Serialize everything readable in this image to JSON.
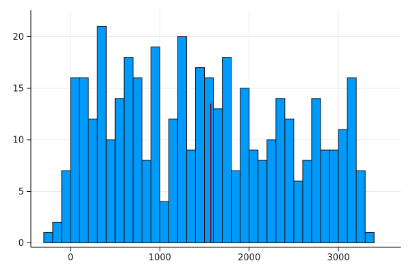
{
  "figure": {
    "background": "#ffffff",
    "title": ""
  },
  "chart_data": {
    "type": "bar",
    "subtype": "histogram",
    "title": "",
    "xlabel": "",
    "ylabel": "",
    "legend": "none",
    "grid": true,
    "bin_start": -300,
    "bin_width": 100,
    "counts": [
      1,
      2,
      7,
      16,
      16,
      12,
      21,
      10,
      14,
      18,
      16,
      8,
      19,
      4,
      12,
      20,
      9,
      17,
      16,
      13,
      18,
      7,
      15,
      9,
      8,
      10,
      14,
      12,
      6,
      8,
      14,
      9,
      9,
      11,
      16,
      7,
      1
    ],
    "x_tick_labels": [
      "0",
      "1000",
      "2000",
      "3000"
    ],
    "x_tick_values": [
      0,
      1000,
      2000,
      3000
    ],
    "y_tick_labels": [
      "0",
      "5",
      "10",
      "15",
      "20"
    ],
    "y_tick_values": [
      0,
      5,
      10,
      15,
      20
    ],
    "xlim": [
      -445,
      3700
    ],
    "ylim": [
      0,
      22.5
    ],
    "colors": {
      "bar_fill": "#009AFA",
      "bar_edge": "#111111",
      "grid_line": "#e9e9e9",
      "spine": "#000000",
      "tick_label": "#1a1a1a"
    },
    "annotations": [
      {
        "type": "vline-segment",
        "x": 1570,
        "y_from": 0,
        "y_to": 13.5,
        "color": "#8B0000"
      }
    ]
  }
}
